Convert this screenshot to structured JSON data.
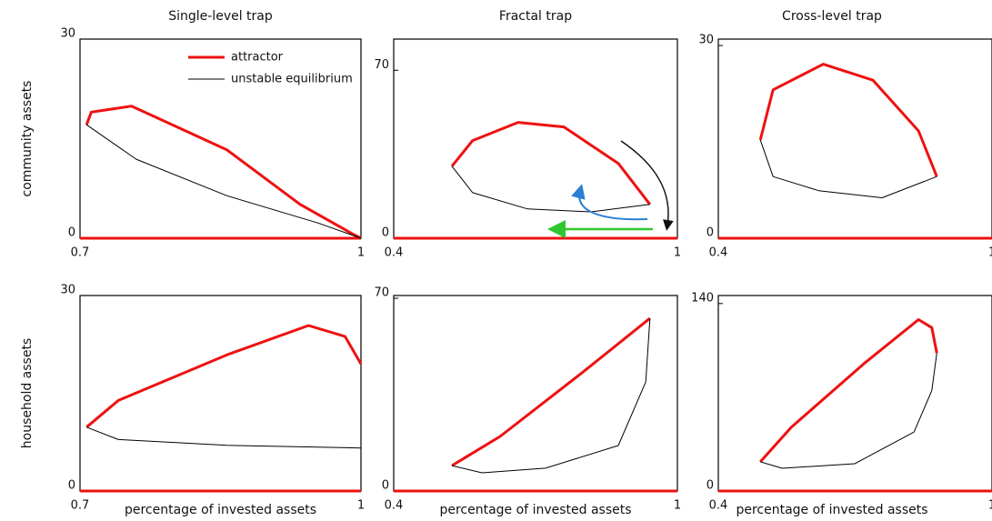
{
  "chart_data": [
    {
      "type": "line",
      "title": "Single-level trap",
      "ylabel": "community assets",
      "xlim": [
        0.7,
        1
      ],
      "xticks": [
        0.7,
        1
      ],
      "ylim": [
        0,
        30
      ],
      "yticks": [
        0,
        30
      ],
      "legend": "top-right",
      "series": [
        {
          "name": "attractor",
          "color": "#ee1111",
          "x": [
            0.7,
            1,
            null,
            0.707,
            0.712,
            0.755,
            0.857,
            0.935,
            0.993,
            1
          ],
          "values": [
            0,
            0,
            null,
            17.1,
            19,
            19.9,
            13.3,
            5.1,
            0.5,
            0
          ]
        },
        {
          "name": "unstable equilibrium",
          "color": "#000000",
          "x": [
            0.707,
            0.76,
            0.857,
            0.954,
            1
          ],
          "values": [
            17.1,
            11.9,
            6.4,
            2.3,
            0
          ]
        }
      ]
    },
    {
      "type": "line",
      "title": "Fractal trap",
      "xlim": [
        0.4,
        1
      ],
      "xticks": [
        0.4,
        1
      ],
      "ylim": [
        0,
        83
      ],
      "yticks": [
        0,
        70
      ],
      "series": [
        {
          "color": "#ee1111",
          "x": [
            0.4,
            1,
            null,
            0.523,
            0.567,
            0.663,
            0.76,
            0.875,
            0.942
          ],
          "values": [
            0,
            0,
            null,
            30,
            40.7,
            48.3,
            46.4,
            31.2,
            14.1
          ]
        },
        {
          "color": "#000000",
          "x": [
            0.523,
            0.567,
            0.683,
            0.817,
            0.942
          ],
          "values": [
            30,
            19,
            12.2,
            11,
            14.1
          ]
        }
      ]
    },
    {
      "type": "line",
      "title": "Cross-level trap",
      "xlim": [
        0.4,
        1
      ],
      "xticks": [
        0.4,
        1
      ],
      "ylim": [
        0,
        31
      ],
      "yticks": [
        0,
        30
      ],
      "series": [
        {
          "color": "#ee1111",
          "x": [
            0.4,
            1,
            null,
            0.492,
            0.52,
            0.63,
            0.739,
            0.839,
            0.879
          ],
          "values": [
            0,
            0,
            null,
            15.3,
            23.1,
            27.1,
            24.6,
            16.7,
            9.6
          ]
        },
        {
          "color": "#000000",
          "x": [
            0.492,
            0.52,
            0.62,
            0.759,
            0.879
          ],
          "values": [
            15.3,
            9.6,
            7.4,
            6.3,
            9.6
          ]
        }
      ]
    },
    {
      "type": "line",
      "xlabel": "percentage of invested assets",
      "ylabel": "household assets",
      "xlim": [
        0.7,
        1
      ],
      "xticks": [
        0.7,
        1
      ],
      "ylim": [
        0,
        30
      ],
      "yticks": [
        0,
        30
      ],
      "series": [
        {
          "color": "#ee1111",
          "x": [
            0.7,
            1,
            null,
            0.707,
            0.741,
            0.857,
            0.944,
            0.983,
            1
          ],
          "values": [
            0,
            0,
            null,
            9.8,
            13.9,
            20.9,
            25.4,
            23.7,
            19.5
          ]
        },
        {
          "color": "#000000",
          "x": [
            0.707,
            0.741,
            0.857,
            1
          ],
          "values": [
            9.8,
            7.9,
            7,
            6.6
          ]
        }
      ]
    },
    {
      "type": "line",
      "xlabel": "percentage of invested assets",
      "xlim": [
        0.4,
        1
      ],
      "xticks": [
        0.4,
        1
      ],
      "ylim": [
        0,
        71
      ],
      "yticks": [
        0,
        70
      ],
      "series": [
        {
          "color": "#ee1111",
          "x": [
            0.4,
            1,
            null,
            0.523,
            0.625,
            0.798,
            0.942
          ],
          "values": [
            0,
            0,
            null,
            9.2,
            19.8,
            42.9,
            62.7
          ]
        },
        {
          "color": "#000000",
          "x": [
            0.523,
            0.587,
            0.721,
            0.875,
            0.933,
            0.942
          ],
          "values": [
            9.2,
            6.6,
            8.3,
            16.5,
            39.6,
            62.7
          ]
        }
      ]
    },
    {
      "type": "line",
      "xlabel": "percentage of invested assets",
      "xlim": [
        0.4,
        1
      ],
      "xticks": [
        0.4,
        1
      ],
      "ylim": [
        0,
        146
      ],
      "yticks": [
        0,
        140
      ],
      "series": [
        {
          "color": "#ee1111",
          "x": [
            0.4,
            1,
            null,
            0.492,
            0.56,
            0.719,
            0.839,
            0.868,
            0.879
          ],
          "values": [
            0,
            0,
            null,
            21.8,
            47.6,
            95,
            128,
            122,
            103
          ]
        },
        {
          "color": "#000000",
          "x": [
            0.492,
            0.54,
            0.699,
            0.829,
            0.868,
            0.879
          ],
          "values": [
            21.8,
            17,
            20.4,
            44,
            75,
            103
          ]
        }
      ]
    }
  ]
}
